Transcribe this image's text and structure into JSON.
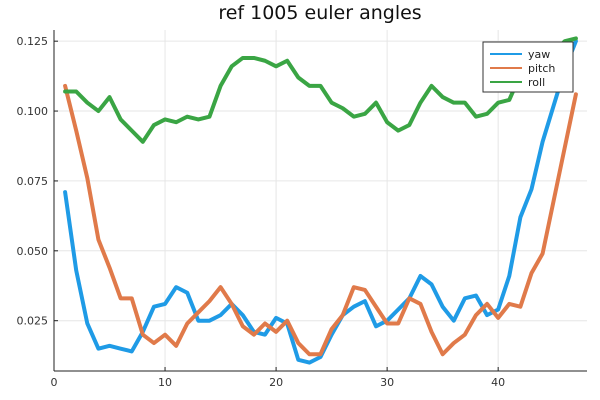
{
  "chart_data": {
    "type": "line",
    "title": "ref 1005 euler angles",
    "xlabel": "",
    "ylabel": "",
    "xlim": [
      0,
      48
    ],
    "ylim": [
      0.007,
      0.129
    ],
    "xticks": [
      0,
      10,
      20,
      30,
      40
    ],
    "yticks": [
      0.025,
      0.05,
      0.075,
      0.1,
      0.125
    ],
    "ytick_labels": [
      "0.025",
      "0.050",
      "0.075",
      "0.100",
      "0.125"
    ],
    "xtick_labels": [
      "0",
      "10",
      "20",
      "30",
      "40"
    ],
    "grid": true,
    "legend_position": "top-right",
    "x": [
      1,
      2,
      3,
      4,
      5,
      6,
      7,
      8,
      9,
      10,
      11,
      12,
      13,
      14,
      15,
      16,
      17,
      18,
      19,
      20,
      21,
      22,
      23,
      24,
      25,
      26,
      27,
      28,
      29,
      30,
      31,
      32,
      33,
      34,
      35,
      36,
      37,
      38,
      39,
      40,
      41,
      42,
      43,
      44,
      45,
      46,
      47
    ],
    "series": [
      {
        "name": "yaw",
        "color": "#1f9be6",
        "values": [
          0.071,
          0.043,
          0.024,
          0.015,
          0.016,
          0.015,
          0.014,
          0.021,
          0.03,
          0.031,
          0.037,
          0.035,
          0.025,
          0.025,
          0.027,
          0.031,
          0.027,
          0.021,
          0.02,
          0.026,
          0.024,
          0.011,
          0.01,
          0.012,
          0.02,
          0.027,
          0.03,
          0.032,
          0.023,
          0.025,
          0.029,
          0.033,
          0.041,
          0.038,
          0.03,
          0.025,
          0.033,
          0.034,
          0.027,
          0.029,
          0.041,
          0.062,
          0.072,
          0.089,
          0.102,
          0.115,
          0.125
        ]
      },
      {
        "name": "pitch",
        "color": "#e07a4a",
        "values": [
          0.109,
          0.093,
          0.076,
          0.054,
          0.044,
          0.033,
          0.033,
          0.02,
          0.017,
          0.02,
          0.016,
          0.024,
          0.028,
          0.032,
          0.037,
          0.031,
          0.023,
          0.02,
          0.024,
          0.021,
          0.025,
          0.017,
          0.013,
          0.013,
          0.022,
          0.027,
          0.037,
          0.036,
          0.03,
          0.024,
          0.024,
          0.033,
          0.031,
          0.021,
          0.013,
          0.017,
          0.02,
          0.027,
          0.031,
          0.026,
          0.031,
          0.03,
          0.042,
          0.049,
          0.068,
          0.087,
          0.106
        ]
      },
      {
        "name": "roll",
        "color": "#3aa544",
        "values": [
          0.107,
          0.107,
          0.103,
          0.1,
          0.105,
          0.097,
          0.093,
          0.089,
          0.095,
          0.097,
          0.096,
          0.098,
          0.097,
          0.098,
          0.109,
          0.116,
          0.119,
          0.119,
          0.118,
          0.116,
          0.118,
          0.112,
          0.109,
          0.109,
          0.103,
          0.101,
          0.098,
          0.099,
          0.103,
          0.096,
          0.093,
          0.095,
          0.103,
          0.109,
          0.105,
          0.103,
          0.103,
          0.098,
          0.099,
          0.103,
          0.104,
          0.113,
          0.118,
          0.12,
          0.121,
          0.125,
          0.126
        ]
      }
    ]
  }
}
